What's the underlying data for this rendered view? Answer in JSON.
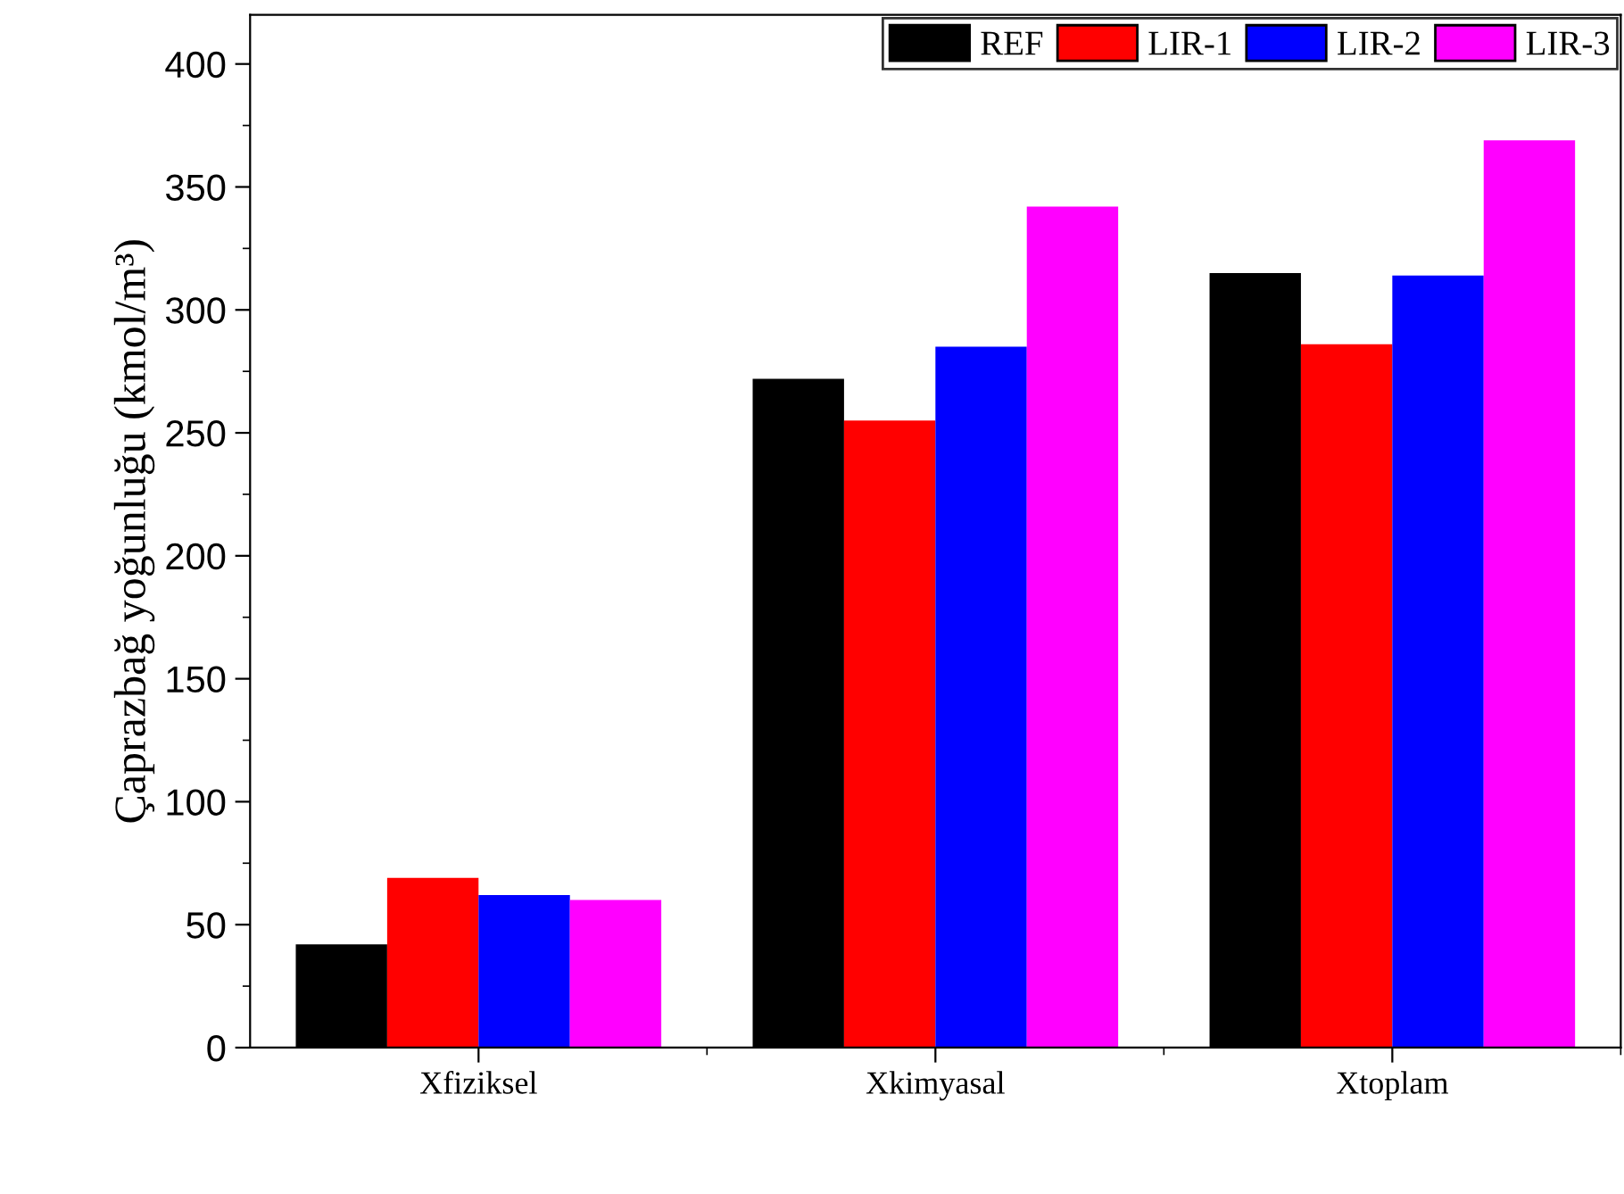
{
  "chart_data": {
    "type": "bar",
    "ylabel": "Çaprazbağ yoğunluğu (kmol/m³)",
    "categories": [
      "Xfiziksel",
      "Xkimyasal",
      "Xtoplam"
    ],
    "series": [
      {
        "name": "REF",
        "color": "#000000",
        "values": [
          42,
          272,
          315
        ]
      },
      {
        "name": "LIR-1",
        "color": "#ff0000",
        "values": [
          69,
          255,
          286
        ]
      },
      {
        "name": "LIR-2",
        "color": "#0000ff",
        "values": [
          62,
          285,
          314
        ]
      },
      {
        "name": "LIR-3",
        "color": "#ff00ff",
        "values": [
          60,
          342,
          369
        ]
      }
    ],
    "ylim": [
      0,
      420
    ],
    "yticks": [
      0,
      50,
      100,
      150,
      200,
      250,
      300,
      350,
      400
    ],
    "grid": false,
    "legend": "top right"
  }
}
